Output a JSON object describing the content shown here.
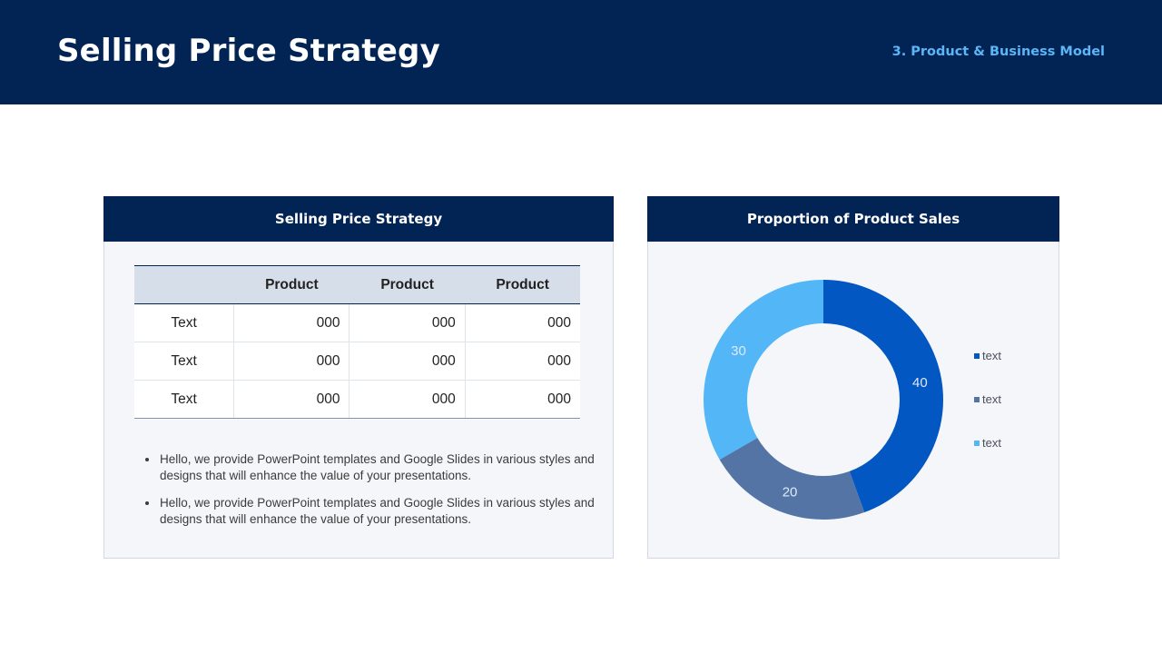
{
  "header": {
    "title": "Selling Price Strategy",
    "section": "3. Product & Business Model"
  },
  "left_card": {
    "title": "Selling Price Strategy",
    "table": {
      "headers": [
        "",
        "Product",
        "Product",
        "Product"
      ],
      "rows": [
        [
          "Text",
          "000",
          "000",
          "000"
        ],
        [
          "Text",
          "000",
          "000",
          "000"
        ],
        [
          "Text",
          "000",
          "000",
          "000"
        ]
      ]
    },
    "notes": [
      "Hello, we provide PowerPoint templates and Google Slides in various styles and designs that will enhance the value of your presentations.",
      "Hello, we provide PowerPoint templates and Google Slides in various styles and designs that will enhance the value of your presentations."
    ]
  },
  "right_card": {
    "title": "Proportion of Product Sales"
  },
  "colors": {
    "navy": "#022455",
    "accent": "#5ab6f6"
  },
  "chart_data": {
    "type": "pie",
    "variant": "donut",
    "categories": [
      "text",
      "text",
      "text"
    ],
    "values": [
      40,
      20,
      30
    ],
    "colors": [
      "#0357c3",
      "#5474a6",
      "#53b6f7"
    ],
    "legend": "right",
    "data_labels": true
  }
}
